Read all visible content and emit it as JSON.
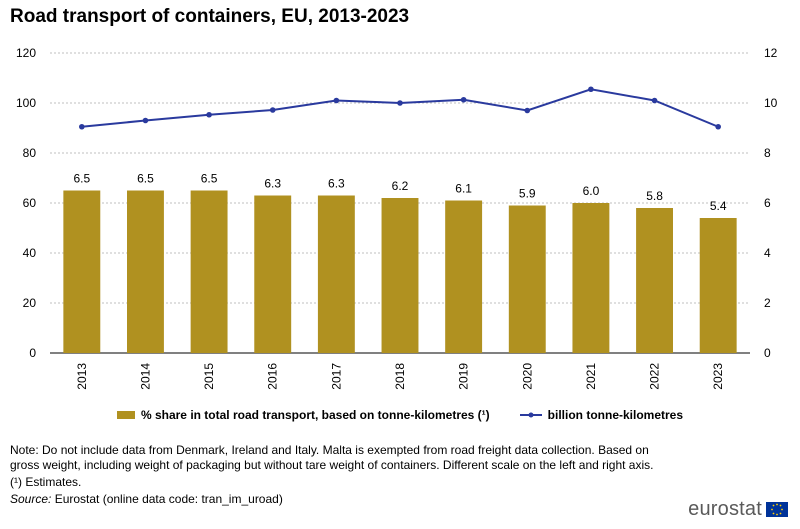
{
  "title": "Road transport of containers, EU, 2013-2023",
  "chart_data": {
    "type": "bar",
    "categories": [
      "2013",
      "2014",
      "2015",
      "2016",
      "2017",
      "2018",
      "2019",
      "2020",
      "2021",
      "2022",
      "2023"
    ],
    "series": [
      {
        "name": "% share in total road transport, based on tonne-kilometres (¹)",
        "type": "bar",
        "axis": "right",
        "values": [
          6.5,
          6.5,
          6.5,
          6.3,
          6.3,
          6.2,
          6.1,
          5.9,
          6.0,
          5.8,
          5.4
        ],
        "labels": [
          "6.5",
          "6.5",
          "6.5",
          "6.3",
          "6.3",
          "6.2",
          "6.1",
          "5.9",
          "6.0",
          "5.8",
          "5.4"
        ],
        "color": "#b09120"
      },
      {
        "name": "billion tonne-kilometres",
        "type": "line",
        "axis": "left",
        "values": [
          90.5,
          93.0,
          95.3,
          97.2,
          101.0,
          100.0,
          101.3,
          97.0,
          105.5,
          101.0,
          90.5
        ],
        "color": "#2a3a9e"
      }
    ],
    "y_left": {
      "ylim": [
        0,
        120
      ],
      "ticks": [
        "0",
        "20",
        "40",
        "60",
        "80",
        "100",
        "120"
      ]
    },
    "y_right": {
      "ylim": [
        0,
        12
      ],
      "ticks": [
        "0",
        "2",
        "4",
        "6",
        "8",
        "10",
        "12"
      ]
    },
    "grid": true,
    "legend_position": "bottom"
  },
  "legend": {
    "bar_label": "% share in total road transport, based on tonne-kilometres (¹)",
    "line_label": "billion tonne-kilometres"
  },
  "notes": {
    "note": "Note: Do not include data from Denmark, Ireland and Italy. Malta is exempted from road freight data collection. Based on gross weight, including weight of packaging but without tare weight of containers. Different scale on the left and right axis.",
    "estimates": "(¹) Estimates.",
    "source_label": "Source:",
    "source_text": " Eurostat (online data code: tran_im_uroad)"
  },
  "brand": "eurostat"
}
